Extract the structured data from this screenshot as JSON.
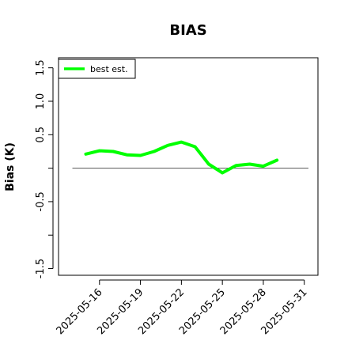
{
  "chart_data": {
    "type": "line",
    "title": "BIAS",
    "xlabel": "",
    "ylabel": "Bias (K)",
    "ylim": [
      -1.6,
      1.65
    ],
    "y_ticks": [
      -1.5,
      -1.0,
      -0.5,
      0.0,
      0.5,
      1.0,
      1.5
    ],
    "y_tick_labels": [
      "-1.5",
      "",
      "-0.5",
      "",
      "0.5",
      "1.0",
      "1.5"
    ],
    "x_ticks": [
      "2025-05-16",
      "2025-05-19",
      "2025-05-22",
      "2025-05-25",
      "2025-05-28",
      "2025-05-31"
    ],
    "x_range": [
      "2025-05-13",
      "2025-06-01"
    ],
    "reference_line": 0.0,
    "grid": false,
    "legend_position": "top-left",
    "series": [
      {
        "name": "best est.",
        "color": "#00ff00",
        "x": [
          "2025-05-15",
          "2025-05-16",
          "2025-05-17",
          "2025-05-18",
          "2025-05-19",
          "2025-05-20",
          "2025-05-21",
          "2025-05-22",
          "2025-05-23",
          "2025-05-24",
          "2025-05-25",
          "2025-05-26",
          "2025-05-27",
          "2025-05-28",
          "2025-05-29"
        ],
        "values": [
          0.21,
          0.26,
          0.25,
          0.2,
          0.19,
          0.25,
          0.34,
          0.39,
          0.32,
          0.06,
          -0.07,
          0.04,
          0.06,
          0.03,
          0.12
        ]
      }
    ]
  }
}
